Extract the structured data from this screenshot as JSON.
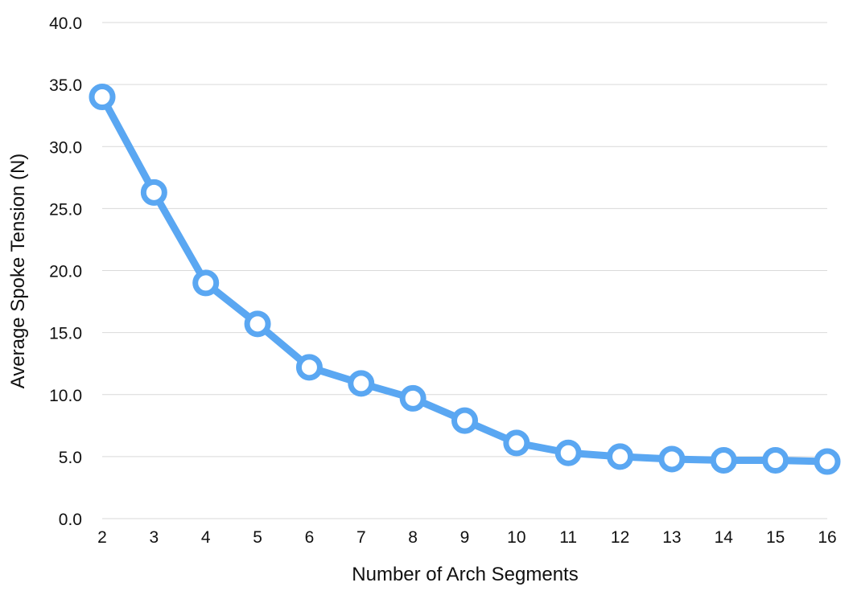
{
  "chart_data": {
    "type": "line",
    "title": "",
    "xlabel": "Number of Arch Segments",
    "ylabel": "Average Spoke Tension (N)",
    "x": [
      2,
      3,
      4,
      5,
      6,
      7,
      8,
      9,
      10,
      11,
      12,
      13,
      14,
      15,
      16
    ],
    "series": [
      {
        "values": [
          34.0,
          26.3,
          19.0,
          15.7,
          12.2,
          10.9,
          9.7,
          7.9,
          6.1,
          5.3,
          5.0,
          4.8,
          4.7,
          4.7,
          4.6
        ],
        "color": "#5aa7f2"
      }
    ],
    "ylim": [
      0,
      40
    ],
    "xlim": [
      2,
      16
    ],
    "yticks": [
      "0.0",
      "5.0",
      "10.0",
      "15.0",
      "20.0",
      "25.0",
      "30.0",
      "35.0",
      "40.0"
    ],
    "xticks": [
      "2",
      "3",
      "4",
      "5",
      "6",
      "7",
      "8",
      "9",
      "10",
      "11",
      "12",
      "13",
      "14",
      "15",
      "16"
    ],
    "grid": true,
    "legend": "none"
  }
}
